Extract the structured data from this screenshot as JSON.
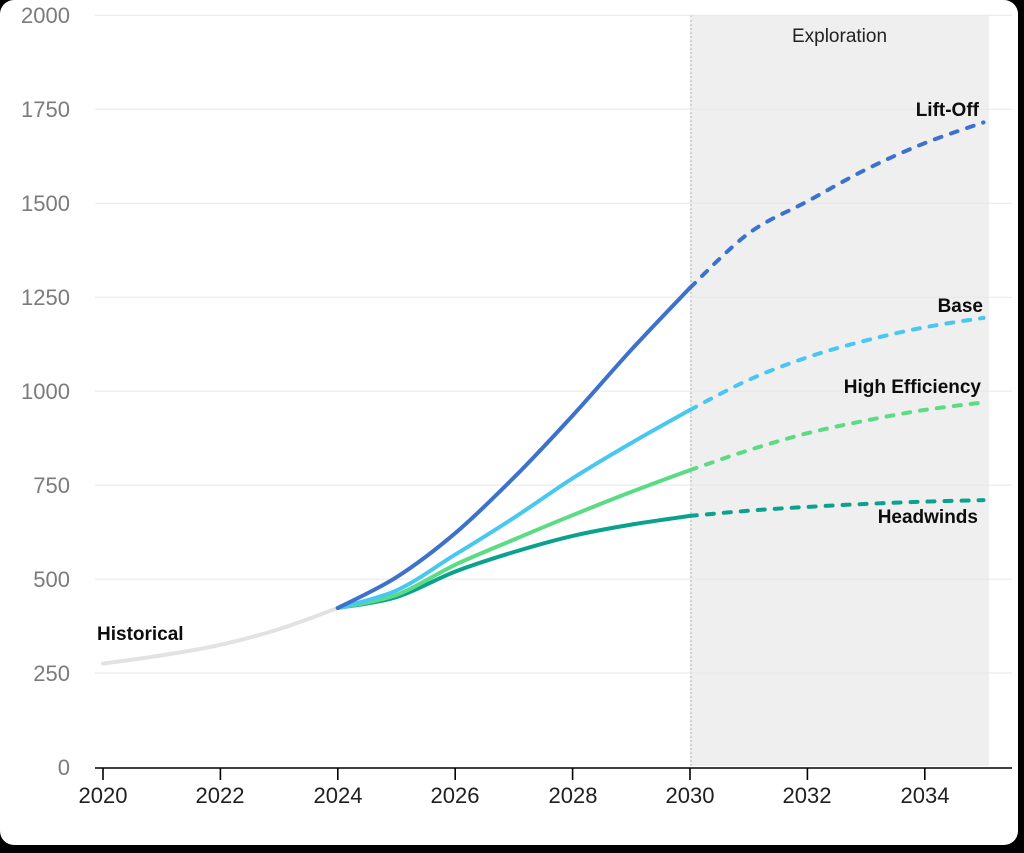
{
  "page": {
    "background_color": "#000000",
    "card_background_color": "#ffffff"
  },
  "chart_data": {
    "type": "line",
    "title": "",
    "xlabel": "",
    "ylabel": "",
    "x_range": [
      2020,
      2035
    ],
    "y_range": [
      0,
      2000
    ],
    "x_ticks": [
      2020,
      2022,
      2024,
      2026,
      2028,
      2030,
      2032,
      2034
    ],
    "y_ticks": [
      0,
      250,
      500,
      750,
      1000,
      1250,
      1500,
      1750,
      2000
    ],
    "grid": "horizontal",
    "legend_position": "inline-annotations",
    "shaded_region": {
      "label": "Exploration",
      "x_start": 2030,
      "x_end": 2035,
      "color": "#EFEFEF"
    },
    "series": [
      {
        "name": "Historical",
        "color": "#E2E2E2",
        "line_style": "solid",
        "years": [
          2020,
          2021,
          2022,
          2023,
          2024
        ],
        "values": [
          275,
          297,
          325,
          367,
          423
        ]
      },
      {
        "name": "Lift-Off",
        "color": "#3D72CC",
        "line_style": "solid until 2030, dashed after",
        "dash_from": 2030,
        "years": [
          2024,
          2025,
          2026,
          2027,
          2028,
          2029,
          2030,
          2031,
          2032,
          2033,
          2034,
          2035
        ],
        "values": [
          423,
          505,
          622,
          770,
          935,
          1110,
          1275,
          1420,
          1505,
          1590,
          1660,
          1715
        ]
      },
      {
        "name": "Base",
        "color": "#48C7F0",
        "line_style": "solid until 2030, dashed after",
        "dash_from": 2030,
        "years": [
          2024,
          2025,
          2026,
          2027,
          2028,
          2029,
          2030,
          2031,
          2032,
          2033,
          2034,
          2035
        ],
        "values": [
          423,
          470,
          565,
          663,
          768,
          862,
          950,
          1030,
          1090,
          1135,
          1170,
          1195
        ]
      },
      {
        "name": "High Efficiency",
        "color": "#5BDC84",
        "line_style": "solid until 2030, dashed after",
        "dash_from": 2030,
        "years": [
          2024,
          2025,
          2026,
          2027,
          2028,
          2029,
          2030,
          2031,
          2032,
          2033,
          2034,
          2035
        ],
        "values": [
          423,
          458,
          538,
          605,
          670,
          732,
          790,
          843,
          888,
          922,
          950,
          970
        ]
      },
      {
        "name": "Headwinds",
        "color": "#0BA18F",
        "line_style": "solid until 2030, dashed after",
        "dash_from": 2030,
        "years": [
          2024,
          2025,
          2026,
          2027,
          2028,
          2029,
          2030,
          2031,
          2032,
          2033,
          2034,
          2035
        ],
        "values": [
          423,
          452,
          520,
          572,
          615,
          645,
          668,
          682,
          692,
          700,
          706,
          710
        ]
      }
    ]
  }
}
